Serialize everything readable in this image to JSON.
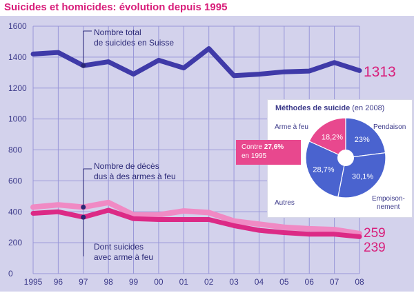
{
  "title": "Suicides et homicides: évolution depuis 1995",
  "chart_data": {
    "type": "line",
    "x": [
      "1995",
      "96",
      "97",
      "98",
      "99",
      "00",
      "01",
      "02",
      "03",
      "04",
      "05",
      "06",
      "07",
      "08"
    ],
    "ylim": [
      0,
      1600
    ],
    "yticks": [
      0,
      200,
      400,
      600,
      800,
      1000,
      1200,
      1400,
      1600
    ],
    "grid": true,
    "series": [
      {
        "name": "Nombre total de suicides en Suisse",
        "label_lines": [
          "Nombre total",
          "de suicides en Suisse"
        ],
        "end_label": "1313",
        "color": "#3f3aa8",
        "values": [
          1420,
          1430,
          1345,
          1370,
          1290,
          1380,
          1330,
          1455,
          1280,
          1290,
          1305,
          1310,
          1365,
          1313
        ]
      },
      {
        "name": "Nombre de décès dus à des armes à feu",
        "label_lines": [
          "Nombre de décès",
          "dus à des armes à feu"
        ],
        "end_label": "259",
        "color": "#f08ac4",
        "values": [
          430,
          445,
          430,
          460,
          380,
          380,
          405,
          395,
          340,
          320,
          300,
          290,
          285,
          259
        ]
      },
      {
        "name": "Dont suicides avec arme à feu",
        "label_lines": [
          "Dont suicides",
          "avec arme à feu"
        ],
        "end_label": "239",
        "color": "#dc2a86",
        "values": [
          390,
          400,
          365,
          410,
          355,
          350,
          350,
          350,
          310,
          280,
          265,
          255,
          255,
          239
        ]
      }
    ]
  },
  "inset": {
    "title_bold": "Méthodes de suicide",
    "title_rest": " (en 2008)",
    "type": "pie",
    "slices": [
      {
        "label": "Arme à feu",
        "value": 18.2,
        "display": "18,2%",
        "color": "#e8488e"
      },
      {
        "label": "Pendaison",
        "value": 23,
        "display": "23%",
        "color": "#4a63cf"
      },
      {
        "label": "Empoisonnement",
        "value": 30.1,
        "display": "30,1%",
        "color": "#4a63cf"
      },
      {
        "label": "Autres",
        "value": 28.7,
        "display": "28,7%",
        "color": "#4a63cf"
      }
    ],
    "label_pendaison": "Pendaison",
    "label_arme": "Arme à feu",
    "label_autres": "Autres",
    "label_empois_1": "Empoison-",
    "label_empois_2": "nement",
    "contre_pre": "Contre ",
    "contre_value": "27,6%",
    "contre_post": "en 1995"
  },
  "colors": {
    "background": "#d3d2ec",
    "grid": "#9896d8",
    "axis_text": "#3c3a8a"
  }
}
